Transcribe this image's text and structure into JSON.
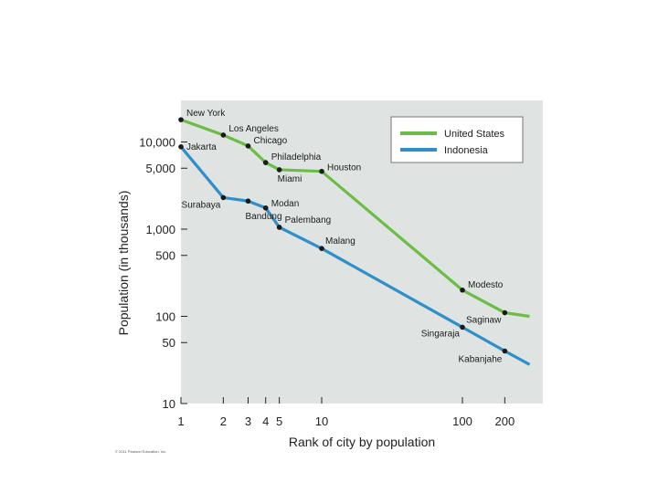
{
  "chart_data": {
    "type": "line",
    "title": "",
    "xlabel": "Rank of city by population",
    "ylabel": "Population (in thousands)",
    "x_scale": "log",
    "y_scale": "log",
    "xlim": [
      1,
      300
    ],
    "ylim": [
      10,
      30000
    ],
    "x_ticks": [
      {
        "value": 1,
        "label": "1"
      },
      {
        "value": 2,
        "label": "2"
      },
      {
        "value": 3,
        "label": "3"
      },
      {
        "value": 4,
        "label": "4"
      },
      {
        "value": 5,
        "label": "5"
      },
      {
        "value": 10,
        "label": "10"
      },
      {
        "value": 100,
        "label": "100"
      },
      {
        "value": 200,
        "label": "200"
      }
    ],
    "y_ticks": [
      {
        "value": 10,
        "label": "10"
      },
      {
        "value": 50,
        "label": "50"
      },
      {
        "value": 100,
        "label": "100"
      },
      {
        "value": 500,
        "label": "500"
      },
      {
        "value": 1000,
        "label": "1,000"
      },
      {
        "value": 5000,
        "label": "5,000"
      },
      {
        "value": 10000,
        "label": "10,000"
      }
    ],
    "legend_position": "top-right",
    "series": [
      {
        "name": "United States",
        "color": "#6cbd45",
        "points": [
          {
            "rank": 1,
            "value": 18000,
            "label": "New York"
          },
          {
            "rank": 2,
            "value": 12000,
            "label": "Los Angeles"
          },
          {
            "rank": 3,
            "value": 9000,
            "label": "Chicago"
          },
          {
            "rank": 4,
            "value": 5800,
            "label": "Philadelphia"
          },
          {
            "rank": 5,
            "value": 4800,
            "label": "Miami"
          },
          {
            "rank": 10,
            "value": 4600,
            "label": "Houston"
          },
          {
            "rank": 100,
            "value": 200,
            "label": "Modesto"
          },
          {
            "rank": 200,
            "value": 110,
            "label": "Saginaw"
          },
          {
            "rank": 300,
            "value": 100,
            "label": ""
          }
        ]
      },
      {
        "name": "Indonesia",
        "color": "#2e8fc9",
        "points": [
          {
            "rank": 1,
            "value": 8800,
            "label": "Jakarta"
          },
          {
            "rank": 2,
            "value": 2300,
            "label": "Surabaya"
          },
          {
            "rank": 3,
            "value": 2100,
            "label": "Bandung"
          },
          {
            "rank": 4,
            "value": 1750,
            "label": "Modan"
          },
          {
            "rank": 5,
            "value": 1050,
            "label": "Palembang"
          },
          {
            "rank": 10,
            "value": 600,
            "label": "Malang"
          },
          {
            "rank": 100,
            "value": 75,
            "label": "Singaraja"
          },
          {
            "rank": 200,
            "value": 40,
            "label": "Kabanjahe"
          },
          {
            "rank": 300,
            "value": 28,
            "label": ""
          }
        ]
      }
    ]
  },
  "copyright": "© 2011 Pearson Education, Inc."
}
